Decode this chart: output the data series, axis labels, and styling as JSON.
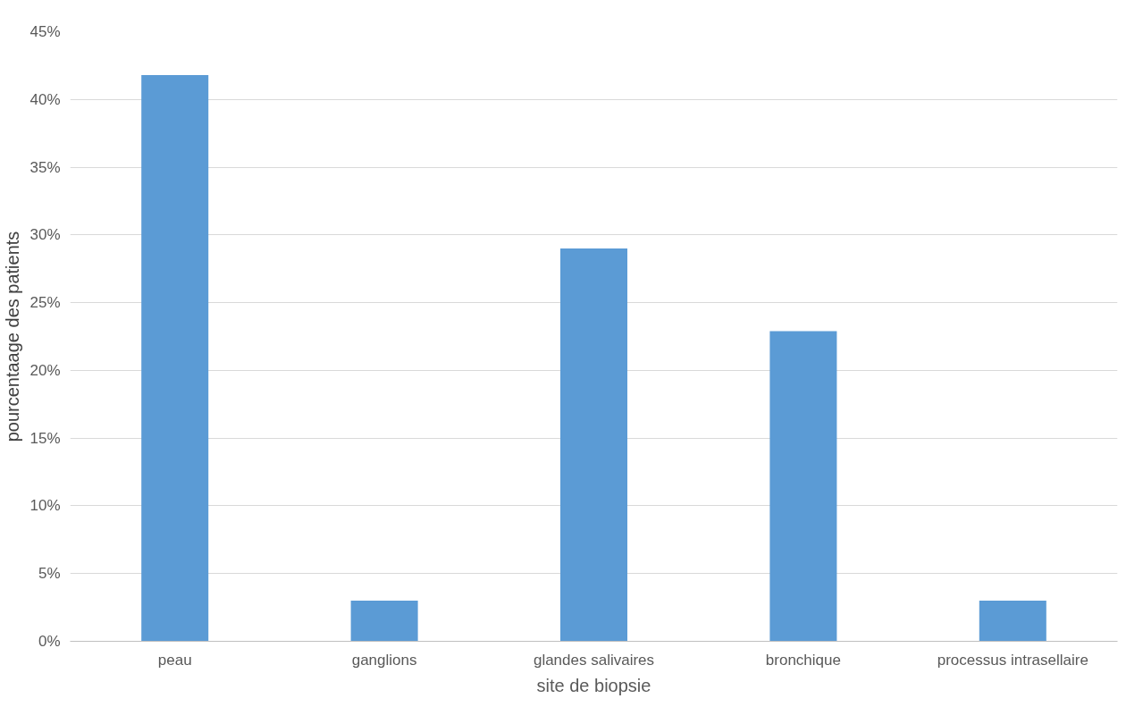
{
  "chart_data": {
    "type": "bar",
    "xlabel": "site de biopsie",
    "ylabel": "pourcentaage des patients",
    "categories": [
      "peau",
      "ganglions",
      "glandes salivaires",
      "bronchique",
      "processus intrasellaire"
    ],
    "values": [
      41.8,
      3,
      29,
      22.9,
      3
    ],
    "color": "#5b9bd5",
    "ylim": [
      0,
      45
    ],
    "yticks": [
      {
        "value": 0,
        "label": "0%"
      },
      {
        "value": 5,
        "label": "5%"
      },
      {
        "value": 10,
        "label": "10%"
      },
      {
        "value": 15,
        "label": "15%"
      },
      {
        "value": 20,
        "label": "20%"
      },
      {
        "value": 25,
        "label": "25%"
      },
      {
        "value": 30,
        "label": "30%"
      },
      {
        "value": 35,
        "label": "35%"
      },
      {
        "value": 40,
        "label": "40%"
      },
      {
        "value": 45,
        "label": "45%"
      }
    ],
    "grid": "y"
  }
}
